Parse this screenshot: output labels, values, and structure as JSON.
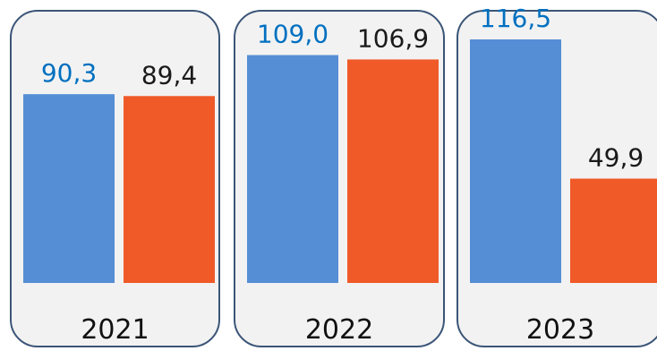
{
  "chart_data": {
    "type": "bar",
    "categories": [
      "2021",
      "2022",
      "2023"
    ],
    "series": [
      {
        "values": [
          90.3,
          109.0,
          116.5
        ],
        "labels": [
          "90,3",
          "109,0",
          "116,5"
        ]
      },
      {
        "values": [
          89.4,
          106.9,
          49.9
        ],
        "labels": [
          "89,4",
          "106,9",
          "49,9"
        ]
      }
    ],
    "ylim": [
      0,
      125
    ]
  },
  "colors": {
    "series_0": "#558ED5",
    "series_1": "#F05A28",
    "label_series_0": "#0070C0",
    "label_series_1": "#1A1A1A",
    "panel_fill": "#F2F2F2",
    "panel_border": "#3B5577"
  }
}
